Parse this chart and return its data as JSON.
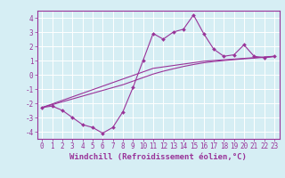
{
  "x": [
    0,
    1,
    2,
    3,
    4,
    5,
    6,
    7,
    8,
    9,
    10,
    11,
    12,
    13,
    14,
    15,
    16,
    17,
    18,
    19,
    20,
    21,
    22,
    23
  ],
  "y_windchill": [
    -2.3,
    -2.2,
    -2.5,
    -3.0,
    -3.5,
    -3.7,
    -4.1,
    -3.7,
    -2.6,
    -0.9,
    1.0,
    2.9,
    2.5,
    3.0,
    3.2,
    4.2,
    2.9,
    1.8,
    1.3,
    1.4,
    2.1,
    1.3,
    1.2,
    1.3
  ],
  "y_trend1": [
    -2.3,
    -2.05,
    -1.8,
    -1.55,
    -1.3,
    -1.05,
    -0.8,
    -0.55,
    -0.3,
    -0.05,
    0.2,
    0.45,
    0.55,
    0.65,
    0.75,
    0.85,
    0.95,
    1.0,
    1.05,
    1.1,
    1.15,
    1.2,
    1.25,
    1.3
  ],
  "y_trend2": [
    -2.3,
    -2.1,
    -1.9,
    -1.7,
    -1.5,
    -1.3,
    -1.1,
    -0.9,
    -0.7,
    -0.45,
    -0.2,
    0.05,
    0.25,
    0.42,
    0.58,
    0.72,
    0.84,
    0.93,
    1.0,
    1.06,
    1.12,
    1.17,
    1.22,
    1.27
  ],
  "line_color": "#993399",
  "background_color": "#d6eef4",
  "grid_color": "#aaccdd",
  "xlabel": "Windchill (Refroidissement éolien,°C)",
  "ylim": [
    -4.5,
    4.5
  ],
  "xlim": [
    -0.5,
    23.5
  ],
  "yticks": [
    -4,
    -3,
    -2,
    -1,
    0,
    1,
    2,
    3,
    4
  ],
  "xticks": [
    0,
    1,
    2,
    3,
    4,
    5,
    6,
    7,
    8,
    9,
    10,
    11,
    12,
    13,
    14,
    15,
    16,
    17,
    18,
    19,
    20,
    21,
    22,
    23
  ],
  "tick_fontsize": 5.5,
  "label_fontsize": 6.5
}
